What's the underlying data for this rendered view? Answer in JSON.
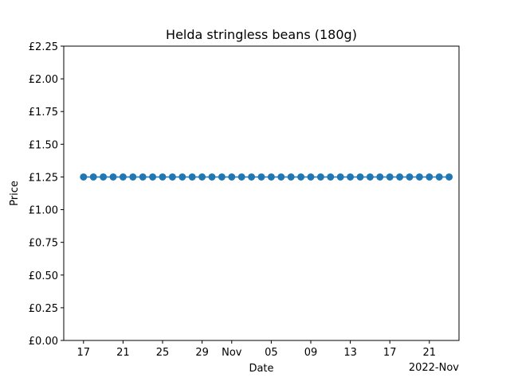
{
  "chart_data": {
    "type": "line",
    "title": "Helda stringless beans (180g)",
    "xlabel": "Date",
    "ylabel": "Price",
    "x_offset_label": "2022-Nov",
    "ylim": [
      0,
      2.25
    ],
    "xlim": [
      "2022-10-15",
      "2022-11-24"
    ],
    "x_ticks": [
      {
        "date": "2022-10-17",
        "label": "17"
      },
      {
        "date": "2022-10-21",
        "label": "21"
      },
      {
        "date": "2022-10-25",
        "label": "25"
      },
      {
        "date": "2022-10-29",
        "label": "29"
      },
      {
        "date": "2022-11-01",
        "label": "Nov"
      },
      {
        "date": "2022-11-05",
        "label": "05"
      },
      {
        "date": "2022-11-09",
        "label": "09"
      },
      {
        "date": "2022-11-13",
        "label": "13"
      },
      {
        "date": "2022-11-17",
        "label": "17"
      },
      {
        "date": "2022-11-21",
        "label": "21"
      }
    ],
    "y_ticks": [
      {
        "value": 0.0,
        "label": "£0.00"
      },
      {
        "value": 0.25,
        "label": "£0.25"
      },
      {
        "value": 0.5,
        "label": "£0.50"
      },
      {
        "value": 0.75,
        "label": "£0.75"
      },
      {
        "value": 1.0,
        "label": "£1.00"
      },
      {
        "value": 1.25,
        "label": "£1.25"
      },
      {
        "value": 1.5,
        "label": "£1.50"
      },
      {
        "value": 1.75,
        "label": "£1.75"
      },
      {
        "value": 2.0,
        "label": "£2.00"
      },
      {
        "value": 2.25,
        "label": "£2.25"
      }
    ],
    "series": [
      {
        "color": "#1f77b4",
        "x": [
          "2022-10-17",
          "2022-10-18",
          "2022-10-19",
          "2022-10-20",
          "2022-10-21",
          "2022-10-22",
          "2022-10-23",
          "2022-10-24",
          "2022-10-25",
          "2022-10-26",
          "2022-10-27",
          "2022-10-28",
          "2022-10-29",
          "2022-10-30",
          "2022-10-31",
          "2022-11-01",
          "2022-11-02",
          "2022-11-03",
          "2022-11-04",
          "2022-11-05",
          "2022-11-06",
          "2022-11-07",
          "2022-11-08",
          "2022-11-09",
          "2022-11-10",
          "2022-11-11",
          "2022-11-12",
          "2022-11-13",
          "2022-11-14",
          "2022-11-15",
          "2022-11-16",
          "2022-11-17",
          "2022-11-18",
          "2022-11-19",
          "2022-11-20",
          "2022-11-21",
          "2022-11-22",
          "2022-11-23"
        ],
        "y": [
          1.25,
          1.25,
          1.25,
          1.25,
          1.25,
          1.25,
          1.25,
          1.25,
          1.25,
          1.25,
          1.25,
          1.25,
          1.25,
          1.25,
          1.25,
          1.25,
          1.25,
          1.25,
          1.25,
          1.25,
          1.25,
          1.25,
          1.25,
          1.25,
          1.25,
          1.25,
          1.25,
          1.25,
          1.25,
          1.25,
          1.25,
          1.25,
          1.25,
          1.25,
          1.25,
          1.25,
          1.25,
          1.25
        ]
      }
    ],
    "grid": false,
    "legend": "none"
  }
}
